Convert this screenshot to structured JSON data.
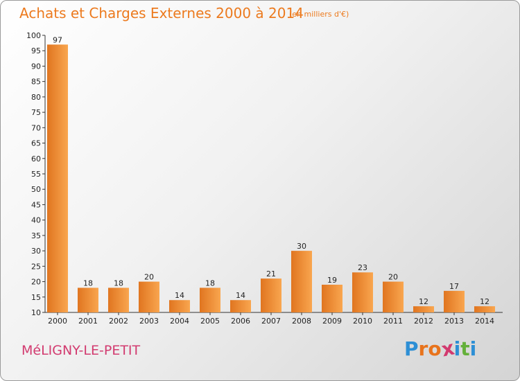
{
  "header": {
    "title": "Achats et Charges Externes 2000 à 2014",
    "subtitle": "(en milliers d'€)"
  },
  "footer": {
    "place": "MéLIGNY-LE-PETIT",
    "logo_letters": [
      "P",
      "r",
      "o",
      "x",
      "i",
      "t",
      "i"
    ]
  },
  "colors": {
    "title": "#ec7a1e",
    "place": "#d23a6f",
    "bar_light": "#f9a64f",
    "bar_dark": "#e07520",
    "logo": [
      "#2d8fd5",
      "#e8731c",
      "#e8731c",
      "#d23a6f",
      "#2d8fd5",
      "#64b03a",
      "#2d8fd5"
    ]
  },
  "chart_data": {
    "type": "bar",
    "title": "Achats et Charges Externes 2000 à 2014",
    "categories": [
      "2000",
      "2001",
      "2002",
      "2003",
      "2004",
      "2005",
      "2006",
      "2007",
      "2008",
      "2009",
      "2010",
      "2011",
      "2012",
      "2013",
      "2014"
    ],
    "values": [
      97,
      18,
      18,
      20,
      14,
      18,
      14,
      21,
      30,
      19,
      23,
      20,
      12,
      17,
      12
    ],
    "ylim": [
      10,
      100
    ],
    "yticks": [
      10,
      15,
      20,
      25,
      30,
      35,
      40,
      45,
      50,
      55,
      60,
      65,
      70,
      75,
      80,
      85,
      90,
      95,
      100
    ],
    "grid": false,
    "data_labels": true
  }
}
